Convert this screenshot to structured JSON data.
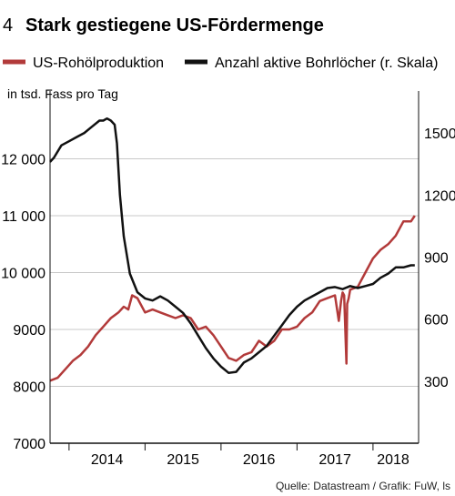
{
  "header": {
    "number": "4",
    "title": "Stark gestiegene US-Fördermenge"
  },
  "source": "Quelle: Datastream / Grafik: FuW, ls",
  "colors": {
    "production": "#b23a3a",
    "rigs": "#111111",
    "grid": "#c8c8c8",
    "axis": "#111111"
  },
  "chart_data": {
    "type": "line",
    "ylabel": "in tsd. Fass pro Tag",
    "x_ticks": [
      "2014",
      "2015",
      "2016",
      "2017",
      "2018"
    ],
    "xlim": [
      2013.75,
      2018.6
    ],
    "y_left": {
      "ticks": [
        "7000",
        "8000",
        "9000",
        "10 000",
        "11 000",
        "12 000"
      ],
      "ylim": [
        7000,
        13000
      ]
    },
    "y_right": {
      "ticks": [
        "300",
        "600",
        "900",
        "1200",
        "1500"
      ],
      "ylim": [
        0,
        1650
      ]
    },
    "legend_position": "top",
    "grid": true,
    "series": [
      {
        "name": "US-Rohölproduktion",
        "axis": "left",
        "color": "#b23a3a",
        "x": [
          2013.75,
          2013.85,
          2013.95,
          2014.05,
          2014.15,
          2014.25,
          2014.35,
          2014.45,
          2014.55,
          2014.65,
          2014.72,
          2014.78,
          2014.83,
          2014.9,
          2015.0,
          2015.1,
          2015.2,
          2015.3,
          2015.4,
          2015.5,
          2015.6,
          2015.7,
          2015.8,
          2015.9,
          2016.0,
          2016.1,
          2016.2,
          2016.3,
          2016.4,
          2016.5,
          2016.6,
          2016.7,
          2016.8,
          2016.9,
          2017.0,
          2017.1,
          2017.2,
          2017.3,
          2017.4,
          2017.5,
          2017.55,
          2017.58,
          2017.6,
          2017.62,
          2017.65,
          2017.66,
          2017.68,
          2017.7,
          2017.8,
          2017.9,
          2018.0,
          2018.1,
          2018.2,
          2018.3,
          2018.4,
          2018.5,
          2018.55
        ],
        "values": [
          8100,
          8150,
          8300,
          8450,
          8550,
          8700,
          8900,
          9050,
          9200,
          9300,
          9400,
          9350,
          9600,
          9550,
          9300,
          9350,
          9300,
          9250,
          9200,
          9250,
          9200,
          9000,
          9050,
          8900,
          8700,
          8500,
          8450,
          8550,
          8600,
          8800,
          8700,
          8800,
          9000,
          9000,
          9050,
          9200,
          9300,
          9500,
          9550,
          9600,
          9150,
          9500,
          9650,
          9600,
          8400,
          9450,
          9550,
          9700,
          9750,
          10000,
          10250,
          10400,
          10500,
          10650,
          10900,
          10900,
          11000
        ]
      },
      {
        "name": "Anzahl aktive Bohrlöcher (r. Skala)",
        "axis": "right",
        "color": "#111111",
        "x": [
          2013.75,
          2013.8,
          2013.9,
          2014.0,
          2014.1,
          2014.2,
          2014.3,
          2014.4,
          2014.45,
          2014.5,
          2014.55,
          2014.6,
          2014.63,
          2014.67,
          2014.72,
          2014.8,
          2014.9,
          2015.0,
          2015.1,
          2015.2,
          2015.3,
          2015.4,
          2015.5,
          2015.6,
          2015.7,
          2015.8,
          2015.9,
          2016.0,
          2016.1,
          2016.2,
          2016.3,
          2016.4,
          2016.5,
          2016.6,
          2016.7,
          2016.8,
          2016.9,
          2017.0,
          2017.1,
          2017.2,
          2017.3,
          2017.4,
          2017.5,
          2017.6,
          2017.7,
          2017.8,
          2017.9,
          2018.0,
          2018.1,
          2018.2,
          2018.3,
          2018.4,
          2018.5,
          2018.55
        ],
        "values": [
          1360,
          1380,
          1440,
          1460,
          1480,
          1500,
          1530,
          1560,
          1560,
          1570,
          1560,
          1540,
          1450,
          1200,
          1000,
          820,
          730,
          700,
          690,
          710,
          690,
          660,
          630,
          580,
          520,
          460,
          410,
          370,
          340,
          345,
          390,
          410,
          440,
          470,
          520,
          570,
          620,
          660,
          690,
          710,
          730,
          750,
          755,
          745,
          760,
          750,
          760,
          770,
          800,
          820,
          850,
          850,
          860,
          860
        ]
      }
    ]
  }
}
